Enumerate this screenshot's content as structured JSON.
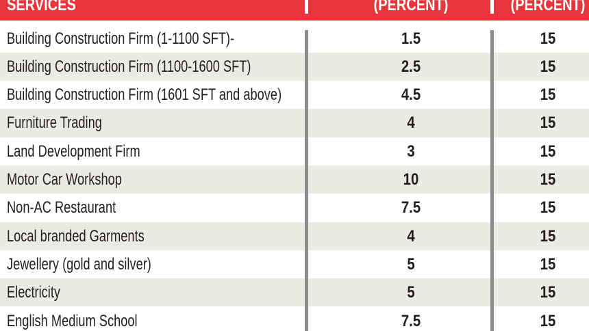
{
  "table": {
    "header": [
      "SERVICES",
      "(PERCENT)",
      "(PERCENT)"
    ],
    "rows": [
      [
        "Building Construction Firm (1-1100 SFT)-",
        1.5,
        15
      ],
      [
        "Building Construction Firm (1100-1600 SFT)",
        2.5,
        15
      ],
      [
        "Building Construction Firm (1601 SFT and above)",
        4.5,
        15
      ],
      [
        "Furniture Trading",
        4,
        15
      ],
      [
        "Land Development Firm",
        3,
        15
      ],
      [
        "Motor Car Workshop",
        10,
        15
      ],
      [
        "Non-AC Restaurant",
        7.5,
        15
      ],
      [
        "Local branded Garments",
        4,
        15
      ],
      [
        "Jewellery (gold and silver)",
        5,
        15
      ],
      [
        "Electricity",
        5,
        15
      ],
      [
        "English Medium School",
        7.5,
        15
      ]
    ]
  }
}
